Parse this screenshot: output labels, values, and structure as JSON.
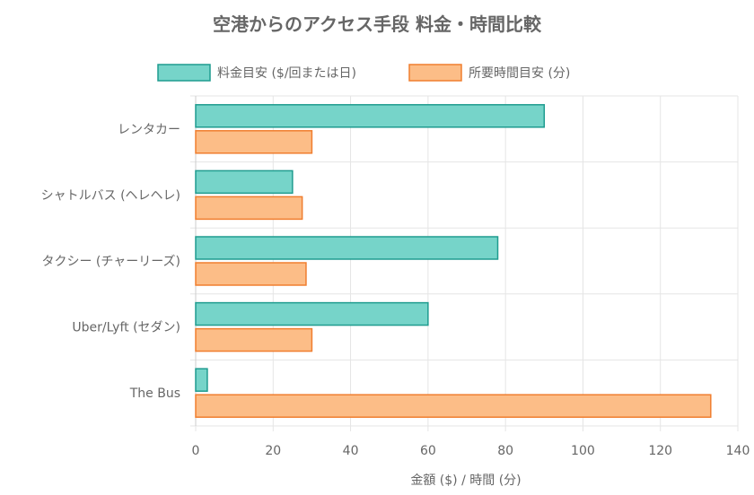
{
  "chart_data": {
    "type": "bar",
    "orientation": "horizontal",
    "title": "空港からのアクセス手段 料金・時間比較",
    "categories": [
      "レンタカー",
      "シャトルバス (ヘレヘレ)",
      "タクシー (チャーリーズ)",
      "Uber/Lyft (セダン)",
      "The Bus"
    ],
    "series": [
      {
        "name": "料金目安 ($/回または日)",
        "values": [
          90,
          25,
          78,
          60,
          3
        ],
        "fill": "#76D4C9",
        "stroke": "#1F9C8F"
      },
      {
        "name": "所要時間目安 (分)",
        "values": [
          30,
          27.5,
          28.5,
          30,
          133
        ],
        "fill": "#FCBD87",
        "stroke": "#F07E2F"
      }
    ],
    "xlabel": "金額 ($) / 時間 (分)",
    "ylabel": "",
    "xlim": [
      0,
      140
    ],
    "xticks": [
      0,
      20,
      40,
      60,
      80,
      100,
      120,
      140
    ],
    "grid": true,
    "legend_position": "top"
  }
}
